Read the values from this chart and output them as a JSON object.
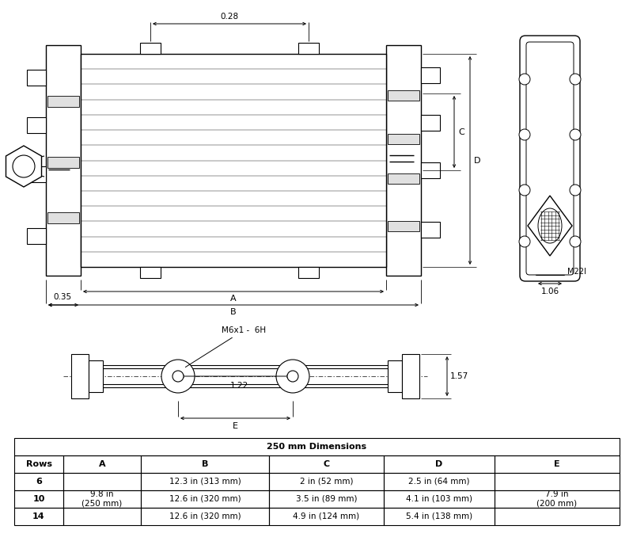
{
  "bg_color": "#ffffff",
  "line_color": "#000000",
  "table_title": "250 mm Dimensions",
  "col_headers": [
    "Rows",
    "A",
    "B",
    "C",
    "D",
    "E"
  ],
  "row_labels": [
    "6",
    "10",
    "14"
  ],
  "col_A": "9.8 in\n(250 mm)",
  "col_E": "7.9 in\n(200 mm)",
  "rows_B": [
    "12.3 in (313 mm)",
    "12.6 in (320 mm)",
    "12.6 in (320 mm)"
  ],
  "rows_C": [
    "2 in (52 mm)",
    "3.5 in (89 mm)",
    "4.9 in (124 mm)"
  ],
  "rows_D": [
    "2.5 in (64 mm)",
    "4.1 in (103 mm)",
    "5.4 in (138 mm)"
  ],
  "dim_028": "0.28",
  "dim_035": "0.35",
  "dim_106": "1.06",
  "dim_122": "1.22",
  "dim_157": "1.57",
  "label_A": "A",
  "label_B": "B",
  "label_C": "C",
  "label_D": "D",
  "label_E": "E",
  "label_M22I": "M22I",
  "label_M6x1": "M6x1 -  6H",
  "n_fin_rows": 14,
  "n_fin_zags": 80
}
